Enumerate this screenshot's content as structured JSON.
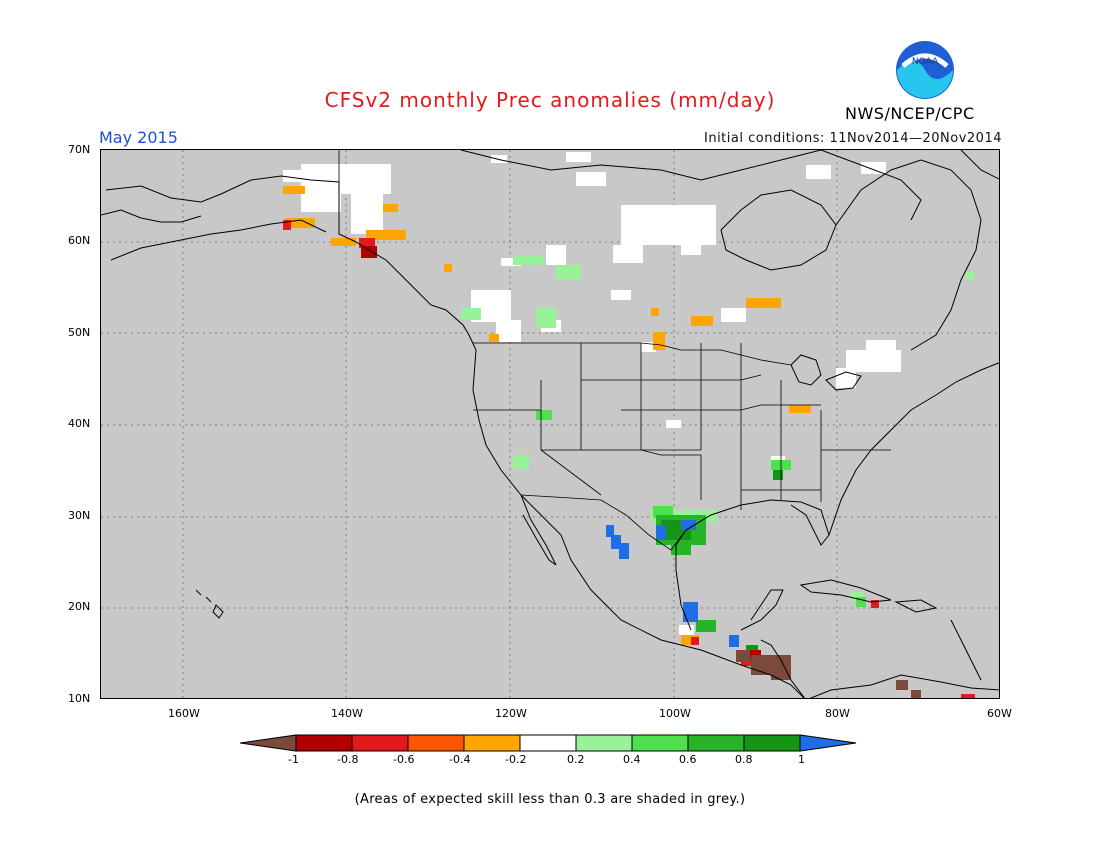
{
  "title": "CFSv2 monthly Prec anomalies (mm/day)",
  "period": "May 2015",
  "initial_conditions": "Initial conditions: 11Nov2014—20Nov2014",
  "agency": "NWS/NCEP/CPC",
  "logo_text": "NOAA",
  "note": "(Areas of expected skill less than 0.3 are shaded in grey.)",
  "map": {
    "lat_range": [
      10,
      70
    ],
    "lon_range": [
      -170,
      -60
    ],
    "lat_labels": [
      "70N",
      "60N",
      "50N",
      "40N",
      "30N",
      "20N",
      "10N"
    ],
    "lon_labels": [
      "160W",
      "140W",
      "120W",
      "100W",
      "80W",
      "60W"
    ],
    "background_color": "#c8c8c8"
  },
  "colorbar": {
    "labels": [
      "-1",
      "-0.8",
      "-0.6",
      "-0.4",
      "-0.2",
      "0.2",
      "0.4",
      "0.6",
      "0.8",
      "1"
    ],
    "colors": [
      "#7a4a3a",
      "#b20000",
      "#e31a1c",
      "#ff5500",
      "#ffa500",
      "#ffffff",
      "#99f199",
      "#4fe04f",
      "#28b428",
      "#149614",
      "#1e6ee6"
    ]
  }
}
